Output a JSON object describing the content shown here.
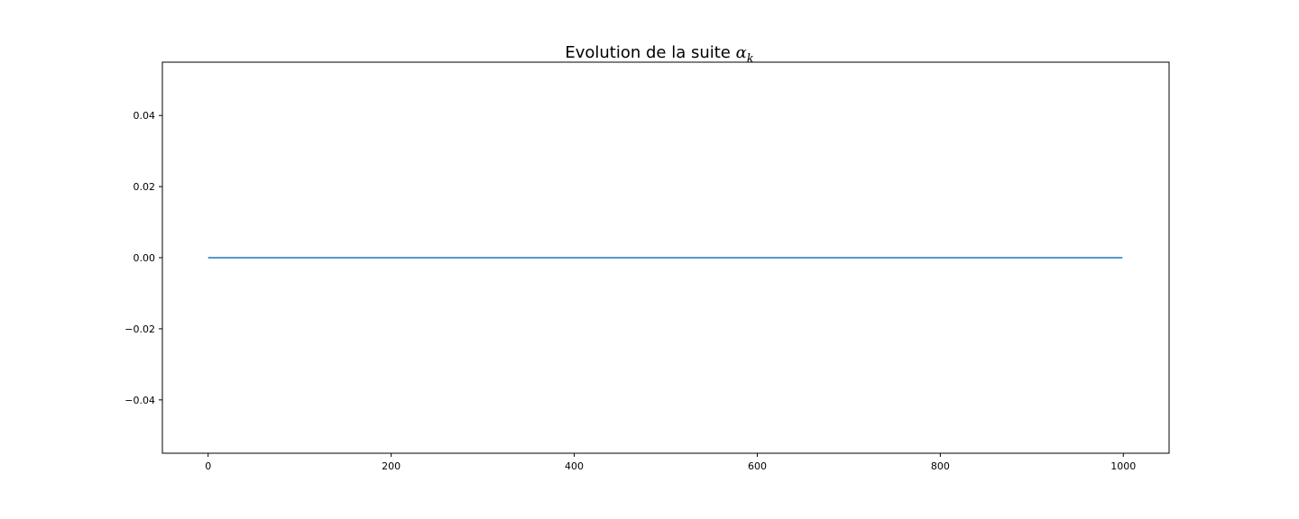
{
  "chart_data": {
    "type": "line",
    "title": "Evolution de la suite ",
    "title_math": {
      "base": "α",
      "subscript": "k"
    },
    "xlabel": "",
    "ylabel": "",
    "xlim": [
      -50,
      1050
    ],
    "ylim": [
      -0.055,
      0.055
    ],
    "x_ticks": [
      0,
      200,
      400,
      600,
      800,
      1000
    ],
    "x_tick_labels": [
      "0",
      "200",
      "400",
      "600",
      "800",
      "1000"
    ],
    "y_ticks": [
      0.04,
      0.02,
      0.0,
      -0.02,
      -0.04
    ],
    "y_tick_labels": [
      "0.04",
      "0.02",
      "0.00",
      "−0.02",
      "−0.04"
    ],
    "grid": false,
    "series": [
      {
        "color": "#1f77b4",
        "x": [
          0,
          999
        ],
        "y": [
          0,
          0
        ]
      }
    ]
  }
}
